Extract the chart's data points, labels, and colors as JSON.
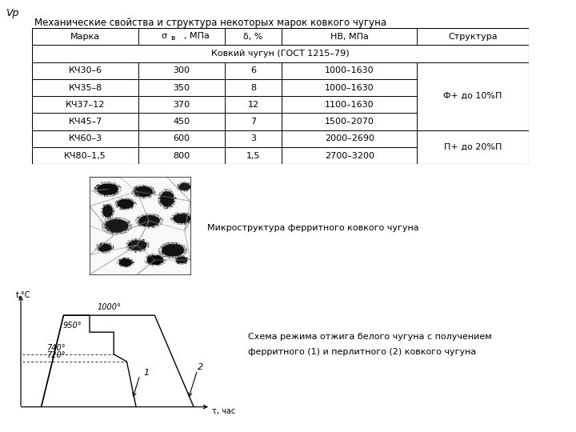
{
  "vp_label": "Vр",
  "title": "Механические свойства и структура некоторых марок ковкого чугуна",
  "table_subheader": "Ковкий чугун (ГОСТ 1215–79)",
  "col_headers": [
    "Марка",
    "σв, МПа",
    "δ, %",
    "НВ, МПа",
    "Структура"
  ],
  "table_rows": [
    [
      "КЧ30–6",
      "300",
      "6",
      "1000–1630"
    ],
    [
      "КЧ35–8",
      "350",
      "8",
      "1000–1630"
    ],
    [
      "КЧ37–12",
      "370",
      "12",
      "1100–1630"
    ],
    [
      "КЧ45–7",
      "450",
      "7",
      "1500–2070"
    ],
    [
      "КЧ60–3",
      "600",
      "3",
      "2000–2690"
    ],
    [
      "КЧ80–1,5",
      "800",
      "1,5",
      "2700–3200"
    ]
  ],
  "struct_1": "Ф+ до 10%П",
  "struct_2": "П+ до 20%П",
  "micro_caption": "Микроструктура ферритного ковкого чугуна",
  "diag_cap1": "Схема режима отжига белого чугуна с получением",
  "diag_cap2": "ферритного (1) и перлитного (2) ковкого чугуна",
  "tau_label": "τ, час",
  "t_label": "t,°C",
  "lbl1": "1",
  "lbl2": "2",
  "temp_1000": "1000°",
  "temp_950": "950°",
  "temp_740": "740°",
  "temp_720": "720°",
  "bg": "#ffffff",
  "line_color": "#000000",
  "table_font_size": 8.0,
  "caption_font_size": 8.0,
  "title_font_size": 8.5
}
